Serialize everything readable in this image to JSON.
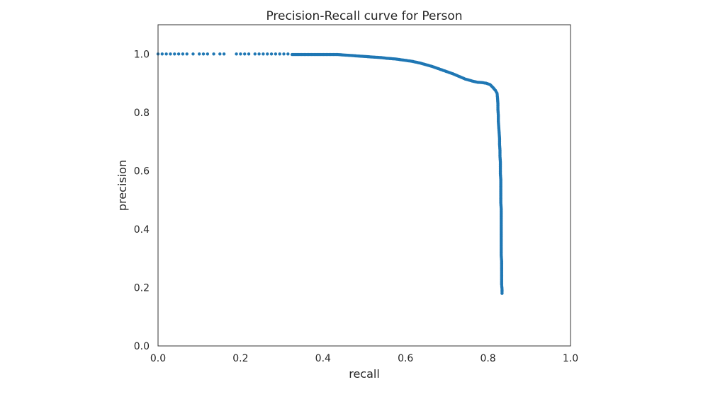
{
  "chart_data": {
    "type": "scatter",
    "title": "Precision-Recall curve for Person",
    "xlabel": "recall",
    "ylabel": "precision",
    "xlim": [
      0.0,
      1.0
    ],
    "ylim": [
      0.0,
      1.1
    ],
    "xticks": [
      "0.0",
      "0.2",
      "0.4",
      "0.6",
      "0.8",
      "1.0"
    ],
    "yticks": [
      "0.0",
      "0.2",
      "0.4",
      "0.6",
      "0.8",
      "1.0"
    ],
    "grid": false,
    "color": "#1f77b4",
    "points": [
      [
        0.0,
        1.0
      ],
      [
        0.01,
        1.0
      ],
      [
        0.02,
        1.0
      ],
      [
        0.03,
        1.0
      ],
      [
        0.04,
        1.0
      ],
      [
        0.05,
        1.0
      ],
      [
        0.06,
        1.0
      ],
      [
        0.07,
        1.0
      ],
      [
        0.085,
        1.0
      ],
      [
        0.1,
        1.0
      ],
      [
        0.11,
        1.0
      ],
      [
        0.12,
        1.0
      ],
      [
        0.135,
        1.0
      ],
      [
        0.15,
        1.0
      ],
      [
        0.16,
        1.0
      ],
      [
        0.19,
        1.0
      ],
      [
        0.2,
        1.0
      ],
      [
        0.21,
        1.0
      ],
      [
        0.22,
        1.0
      ],
      [
        0.235,
        1.0
      ],
      [
        0.245,
        1.0
      ],
      [
        0.255,
        1.0
      ],
      [
        0.265,
        1.0
      ],
      [
        0.275,
        1.0
      ],
      [
        0.285,
        1.0
      ],
      [
        0.295,
        1.0
      ],
      [
        0.305,
        1.0
      ],
      [
        0.315,
        1.0
      ],
      [
        0.325,
        0.998
      ],
      [
        0.335,
        0.998
      ],
      [
        0.345,
        0.998
      ],
      [
        0.355,
        0.998
      ],
      [
        0.365,
        0.998
      ],
      [
        0.375,
        0.998
      ],
      [
        0.385,
        0.998
      ],
      [
        0.395,
        0.998
      ],
      [
        0.405,
        0.998
      ],
      [
        0.415,
        0.998
      ],
      [
        0.425,
        0.998
      ],
      [
        0.435,
        0.998
      ],
      [
        0.445,
        0.997
      ],
      [
        0.455,
        0.996
      ],
      [
        0.465,
        0.995
      ],
      [
        0.475,
        0.994
      ],
      [
        0.485,
        0.993
      ],
      [
        0.495,
        0.992
      ],
      [
        0.505,
        0.991
      ],
      [
        0.515,
        0.99
      ],
      [
        0.525,
        0.989
      ],
      [
        0.535,
        0.988
      ],
      [
        0.545,
        0.987
      ],
      [
        0.555,
        0.985
      ],
      [
        0.565,
        0.984
      ],
      [
        0.575,
        0.983
      ],
      [
        0.585,
        0.981
      ],
      [
        0.595,
        0.979
      ],
      [
        0.605,
        0.977
      ],
      [
        0.615,
        0.975
      ],
      [
        0.625,
        0.972
      ],
      [
        0.635,
        0.969
      ],
      [
        0.645,
        0.965
      ],
      [
        0.655,
        0.961
      ],
      [
        0.665,
        0.957
      ],
      [
        0.675,
        0.952
      ],
      [
        0.685,
        0.947
      ],
      [
        0.695,
        0.942
      ],
      [
        0.705,
        0.937
      ],
      [
        0.715,
        0.932
      ],
      [
        0.725,
        0.926
      ],
      [
        0.735,
        0.92
      ],
      [
        0.745,
        0.914
      ],
      [
        0.755,
        0.91
      ],
      [
        0.765,
        0.906
      ],
      [
        0.775,
        0.903
      ],
      [
        0.785,
        0.902
      ],
      [
        0.795,
        0.9
      ],
      [
        0.805,
        0.895
      ],
      [
        0.812,
        0.885
      ],
      [
        0.818,
        0.875
      ],
      [
        0.822,
        0.865
      ],
      [
        0.823,
        0.85
      ],
      [
        0.824,
        0.83
      ],
      [
        0.824,
        0.81
      ],
      [
        0.825,
        0.79
      ],
      [
        0.825,
        0.77
      ],
      [
        0.826,
        0.75
      ],
      [
        0.827,
        0.73
      ],
      [
        0.828,
        0.71
      ],
      [
        0.828,
        0.69
      ],
      [
        0.829,
        0.67
      ],
      [
        0.829,
        0.65
      ],
      [
        0.83,
        0.63
      ],
      [
        0.83,
        0.61
      ],
      [
        0.83,
        0.59
      ],
      [
        0.831,
        0.57
      ],
      [
        0.831,
        0.55
      ],
      [
        0.831,
        0.53
      ],
      [
        0.831,
        0.51
      ],
      [
        0.831,
        0.49
      ],
      [
        0.832,
        0.47
      ],
      [
        0.832,
        0.45
      ],
      [
        0.832,
        0.43
      ],
      [
        0.832,
        0.41
      ],
      [
        0.832,
        0.39
      ],
      [
        0.832,
        0.37
      ],
      [
        0.832,
        0.35
      ],
      [
        0.832,
        0.33
      ],
      [
        0.832,
        0.31
      ],
      [
        0.833,
        0.29
      ],
      [
        0.833,
        0.27
      ],
      [
        0.833,
        0.25
      ],
      [
        0.833,
        0.23
      ],
      [
        0.833,
        0.21
      ],
      [
        0.834,
        0.195
      ],
      [
        0.834,
        0.18
      ]
    ]
  }
}
